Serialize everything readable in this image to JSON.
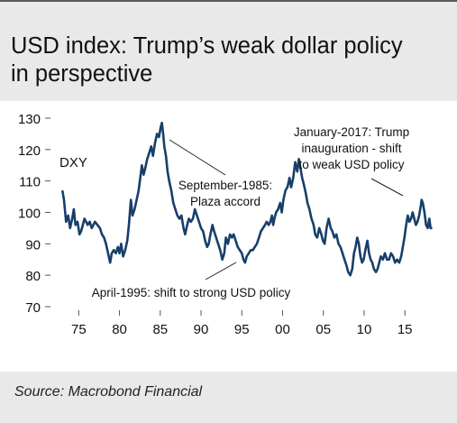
{
  "title_line1": "USD index: Trump’s weak dollar policy",
  "title_line2": "in perspective",
  "source": "Source: Macrobond Financial",
  "colors": {
    "line": "#173f6a",
    "background": "#e9e9e9",
    "plot_background": "#ffffff",
    "text": "#111111"
  },
  "chart_data": {
    "type": "line",
    "series": [
      {
        "name": "DXY",
        "points": [
          [
            1973.0,
            107
          ],
          [
            1973.2,
            104
          ],
          [
            1973.45,
            97
          ],
          [
            1973.7,
            99
          ],
          [
            1973.95,
            95
          ],
          [
            1974.2,
            98
          ],
          [
            1974.4,
            101
          ],
          [
            1974.6,
            96
          ],
          [
            1974.85,
            97
          ],
          [
            1975.1,
            93
          ],
          [
            1975.3,
            94
          ],
          [
            1975.5,
            96
          ],
          [
            1975.7,
            98
          ],
          [
            1975.9,
            97
          ],
          [
            1976.1,
            96
          ],
          [
            1976.35,
            97
          ],
          [
            1976.6,
            95
          ],
          [
            1976.8,
            96
          ],
          [
            1977.0,
            97
          ],
          [
            1977.3,
            96
          ],
          [
            1977.6,
            95
          ],
          [
            1977.85,
            93
          ],
          [
            1978.1,
            92
          ],
          [
            1978.35,
            90
          ],
          [
            1978.6,
            87
          ],
          [
            1978.85,
            84
          ],
          [
            1979.05,
            87
          ],
          [
            1979.3,
            88
          ],
          [
            1979.55,
            87
          ],
          [
            1979.8,
            89
          ],
          [
            1980.0,
            87
          ],
          [
            1980.2,
            90
          ],
          [
            1980.45,
            86
          ],
          [
            1980.7,
            88
          ],
          [
            1980.95,
            91
          ],
          [
            1981.15,
            96
          ],
          [
            1981.4,
            104
          ],
          [
            1981.6,
            99
          ],
          [
            1981.85,
            101
          ],
          [
            1982.1,
            104
          ],
          [
            1982.35,
            107
          ],
          [
            1982.55,
            111
          ],
          [
            1982.75,
            115
          ],
          [
            1982.95,
            112
          ],
          [
            1983.15,
            114
          ],
          [
            1983.4,
            117
          ],
          [
            1983.65,
            119
          ],
          [
            1983.9,
            121
          ],
          [
            1984.1,
            118
          ],
          [
            1984.35,
            122
          ],
          [
            1984.6,
            125
          ],
          [
            1984.85,
            124
          ],
          [
            1985.05,
            127
          ],
          [
            1985.2,
            128.5
          ],
          [
            1985.35,
            125
          ],
          [
            1985.5,
            121
          ],
          [
            1985.7,
            118
          ],
          [
            1985.9,
            113
          ],
          [
            1986.1,
            110
          ],
          [
            1986.35,
            107
          ],
          [
            1986.6,
            103
          ],
          [
            1986.85,
            101
          ],
          [
            1987.1,
            99
          ],
          [
            1987.35,
            98
          ],
          [
            1987.6,
            99
          ],
          [
            1987.85,
            95
          ],
          [
            1988.05,
            93
          ],
          [
            1988.3,
            96
          ],
          [
            1988.5,
            98
          ],
          [
            1988.75,
            97
          ],
          [
            1989.0,
            98
          ],
          [
            1989.25,
            101
          ],
          [
            1989.5,
            99
          ],
          [
            1989.75,
            97
          ],
          [
            1990.0,
            95
          ],
          [
            1990.25,
            94
          ],
          [
            1990.5,
            91
          ],
          [
            1990.75,
            89
          ],
          [
            1990.95,
            90
          ],
          [
            1991.15,
            93
          ],
          [
            1991.4,
            96
          ],
          [
            1991.6,
            94
          ],
          [
            1991.85,
            92
          ],
          [
            1992.1,
            90
          ],
          [
            1992.35,
            88
          ],
          [
            1992.6,
            85
          ],
          [
            1992.85,
            87
          ],
          [
            1993.05,
            92
          ],
          [
            1993.3,
            90
          ],
          [
            1993.55,
            93
          ],
          [
            1993.8,
            92
          ],
          [
            1994.0,
            93
          ],
          [
            1994.25,
            91
          ],
          [
            1994.5,
            89
          ],
          [
            1994.75,
            88
          ],
          [
            1995.0,
            87
          ],
          [
            1995.2,
            85
          ],
          [
            1995.4,
            84
          ],
          [
            1995.6,
            86
          ],
          [
            1995.85,
            87
          ],
          [
            1996.1,
            88
          ],
          [
            1996.35,
            88
          ],
          [
            1996.6,
            89
          ],
          [
            1996.85,
            90
          ],
          [
            1997.1,
            92
          ],
          [
            1997.35,
            94
          ],
          [
            1997.6,
            95
          ],
          [
            1997.85,
            96
          ],
          [
            1998.05,
            97
          ],
          [
            1998.3,
            96
          ],
          [
            1998.5,
            97
          ],
          [
            1998.7,
            99
          ],
          [
            1998.85,
            96
          ],
          [
            1999.0,
            98
          ],
          [
            1999.2,
            100
          ],
          [
            1999.45,
            101
          ],
          [
            1999.7,
            103
          ],
          [
            1999.9,
            100
          ],
          [
            2000.1,
            104
          ],
          [
            2000.35,
            107
          ],
          [
            2000.6,
            108
          ],
          [
            2000.85,
            111
          ],
          [
            2001.05,
            108
          ],
          [
            2001.3,
            111
          ],
          [
            2001.55,
            116
          ],
          [
            2001.8,
            113
          ],
          [
            2002.0,
            117
          ],
          [
            2002.2,
            114
          ],
          [
            2002.4,
            111
          ],
          [
            2002.6,
            109
          ],
          [
            2002.85,
            106
          ],
          [
            2003.05,
            103
          ],
          [
            2003.3,
            101
          ],
          [
            2003.55,
            98
          ],
          [
            2003.8,
            96
          ],
          [
            2004.0,
            93
          ],
          [
            2004.25,
            92
          ],
          [
            2004.5,
            95
          ],
          [
            2004.75,
            93
          ],
          [
            2004.95,
            91
          ],
          [
            2005.15,
            90
          ],
          [
            2005.4,
            95
          ],
          [
            2005.65,
            98
          ],
          [
            2005.9,
            95
          ],
          [
            2006.1,
            94
          ],
          [
            2006.35,
            92
          ],
          [
            2006.6,
            93
          ],
          [
            2006.85,
            90
          ],
          [
            2007.1,
            89
          ],
          [
            2007.35,
            87
          ],
          [
            2007.6,
            85
          ],
          [
            2007.85,
            83
          ],
          [
            2008.05,
            81
          ],
          [
            2008.3,
            80
          ],
          [
            2008.55,
            82
          ],
          [
            2008.75,
            87
          ],
          [
            2008.95,
            89
          ],
          [
            2009.15,
            92
          ],
          [
            2009.35,
            90
          ],
          [
            2009.55,
            86
          ],
          [
            2009.75,
            84
          ],
          [
            2009.95,
            85
          ],
          [
            2010.15,
            88
          ],
          [
            2010.4,
            91
          ],
          [
            2010.6,
            87
          ],
          [
            2010.8,
            85
          ],
          [
            2011.0,
            84
          ],
          [
            2011.2,
            82
          ],
          [
            2011.45,
            81
          ],
          [
            2011.65,
            82
          ],
          [
            2011.85,
            84
          ],
          [
            2012.05,
            86
          ],
          [
            2012.3,
            85
          ],
          [
            2012.55,
            87
          ],
          [
            2012.8,
            85
          ],
          [
            2013.05,
            85
          ],
          [
            2013.3,
            87
          ],
          [
            2013.55,
            86
          ],
          [
            2013.8,
            84
          ],
          [
            2014.05,
            85
          ],
          [
            2014.3,
            84
          ],
          [
            2014.55,
            86
          ],
          [
            2014.75,
            89
          ],
          [
            2014.95,
            92
          ],
          [
            2015.15,
            96
          ],
          [
            2015.35,
            99
          ],
          [
            2015.55,
            97
          ],
          [
            2015.75,
            98
          ],
          [
            2015.95,
            100
          ],
          [
            2016.15,
            98
          ],
          [
            2016.35,
            96
          ],
          [
            2016.55,
            97
          ],
          [
            2016.75,
            99
          ],
          [
            2016.95,
            102
          ],
          [
            2017.05,
            104
          ],
          [
            2017.2,
            103
          ],
          [
            2017.4,
            100
          ],
          [
            2017.6,
            96
          ],
          [
            2017.8,
            95
          ],
          [
            2018.0,
            98
          ],
          [
            2018.15,
            95
          ],
          [
            2018.35,
            95
          ]
        ]
      }
    ],
    "ylim": [
      70,
      130
    ],
    "yticks": [
      70,
      80,
      90,
      100,
      110,
      120,
      130
    ],
    "xlim": [
      1972.2,
      2019.4
    ],
    "xticks": [
      1975,
      1980,
      1985,
      1990,
      1995,
      2000,
      2005,
      2010,
      2015
    ],
    "xtick_labels": [
      "75",
      "80",
      "85",
      "90",
      "95",
      "00",
      "05",
      "10",
      "15"
    ],
    "series_label": "DXY",
    "grid": false,
    "annotations": [
      {
        "lines": [
          "September-1985:",
          "Plaza accord"
        ],
        "target": [
          1985.2,
          128
        ]
      },
      {
        "lines": [
          "January-2017: Trump",
          "inauguration - shift",
          "to weak USD policy"
        ],
        "target": [
          2017.0,
          104
        ]
      },
      {
        "lines": [
          "April-1995: shift to strong USD policy"
        ],
        "target": [
          1995.3,
          85
        ]
      }
    ]
  }
}
